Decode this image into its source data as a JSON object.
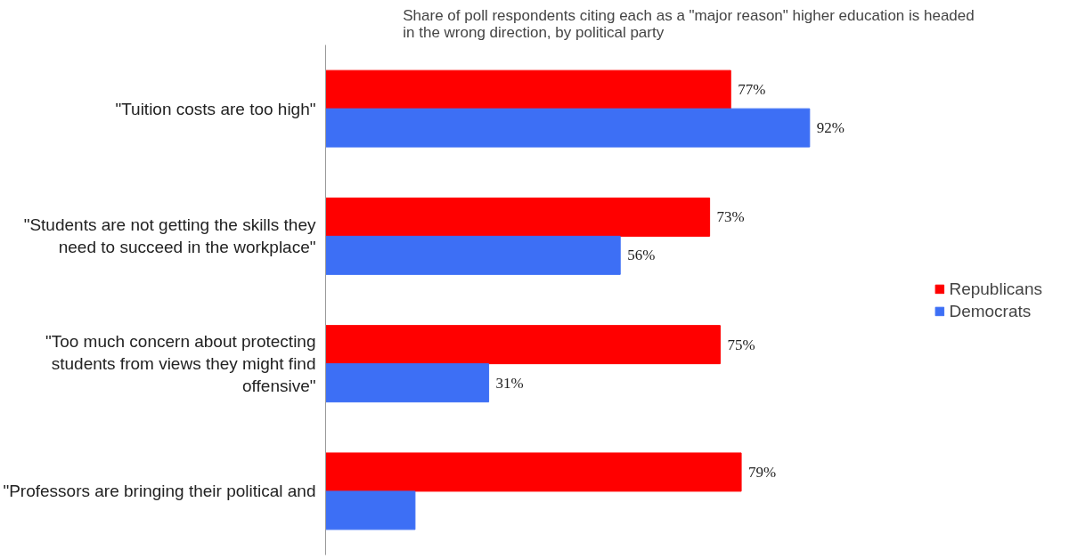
{
  "chart_data": {
    "type": "bar",
    "orientation": "horizontal",
    "title": "Share of poll respondents citing each as a \"major reason\" higher education is headed\nin the wrong direction, by political party",
    "categories": [
      "\"Tuition costs are too high\"",
      "\"Students are not getting the skills they\nneed to succeed in the workplace\"",
      "\"Too much concern about protecting\nstudents from views they might find\noffensive\"",
      "\"Professors are bringing their political and"
    ],
    "series": [
      {
        "name": "Republicans",
        "color": "#ff0000",
        "values": [
          77,
          73,
          75,
          79
        ],
        "value_labels": [
          "77%",
          "73%",
          "75%",
          "79%"
        ]
      },
      {
        "name": "Democrats",
        "color": "#3d6ff5",
        "values": [
          92,
          56,
          31,
          17
        ],
        "value_labels": [
          "92%",
          "56%",
          "31%",
          null
        ]
      }
    ],
    "grid": false,
    "legend": "right",
    "tick_labels": "y"
  }
}
